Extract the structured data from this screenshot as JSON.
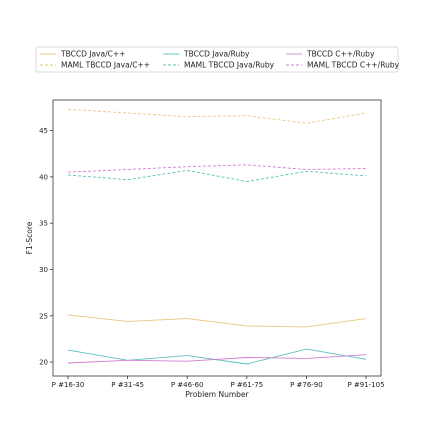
{
  "chart_data": {
    "type": "line",
    "xlabel": "Problem Number",
    "ylabel": "F1-Score",
    "ylim": [
      18.5,
      48.3
    ],
    "yticks": [
      20,
      25,
      30,
      35,
      40,
      45
    ],
    "grid": false,
    "legend_position": "top",
    "categories": [
      "P #16-30",
      "P #31-45",
      "P #46-60",
      "P #61-75",
      "P #76-90",
      "P #91-105"
    ],
    "series": [
      {
        "name": "TBCCD Java/C++",
        "color": "#e8c77f",
        "dash": "solid",
        "values": [
          25.1,
          24.4,
          24.7,
          23.9,
          23.8,
          24.7
        ]
      },
      {
        "name": "MAML TBCCD Java/C++",
        "color": "#e8c77f",
        "dash": "dashed",
        "values": [
          47.3,
          46.9,
          46.5,
          46.6,
          45.8,
          46.9
        ]
      },
      {
        "name": "TBCCD Java/Ruby",
        "color": "#5cc0bb",
        "dash": "solid",
        "values": [
          21.3,
          20.2,
          20.7,
          19.8,
          21.4,
          20.3
        ]
      },
      {
        "name": "MAML TBCCD Java/Ruby",
        "color": "#5cc0bb",
        "dash": "dashed",
        "values": [
          40.2,
          39.7,
          40.7,
          39.5,
          40.6,
          40.1
        ]
      },
      {
        "name": "TBCCD C++/Ruby",
        "color": "#d17fd0",
        "dash": "solid",
        "values": [
          19.9,
          20.2,
          20.1,
          20.5,
          20.4,
          20.8
        ]
      },
      {
        "name": "MAML TBCCD C++/Ruby",
        "color": "#d17fd0",
        "dash": "dashed",
        "values": [
          40.5,
          40.8,
          41.1,
          41.3,
          40.8,
          40.9
        ]
      }
    ]
  }
}
